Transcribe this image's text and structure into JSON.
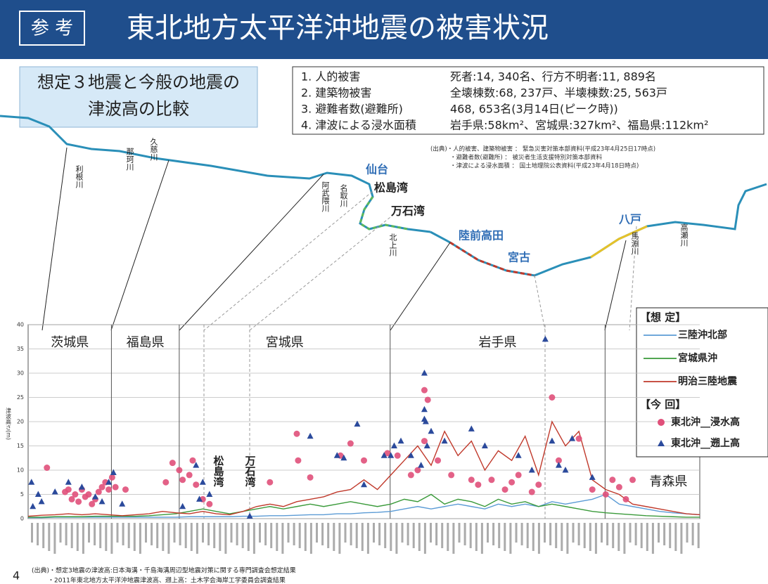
{
  "header": {
    "tag": "参 考",
    "title": "東北地方太平洋沖地震の被害状況"
  },
  "comparison_box": {
    "lines": [
      "想定３地震と今般の地震の",
      "津波高の比較"
    ]
  },
  "damage": {
    "rows": [
      {
        "label": "1. 人的被害",
        "value": "死者:14, 340名、行方不明者:11, 889名"
      },
      {
        "label": "2. 建築物被害",
        "value": "全壊棟数:68, 237戸、半壊棟数:25, 563戸"
      },
      {
        "label": "3. 避難者数(避難所)",
        "value": "468, 653名(3月14日(ピーク時))"
      },
      {
        "label": "4. 津波による浸水面積",
        "value": "岩手県:58km²、宮城県:327km²、福島県:112km²"
      }
    ],
    "source": [
      "(出典)・人的被害、建築物被害 ： 緊急災害対策本部資料(平成23年4月25日17時点)",
      "・避難者数(避難所) ： 被災者生活支援特別対策本部資料",
      "・津波による浸水面積 ： 国土地理院公表資料(平成23年4月18日時点)"
    ]
  },
  "map_labels": [
    "利根川",
    "那珂川",
    "久慈川",
    "阿武隈川",
    "名取川",
    "北上川",
    "仙台",
    "松島湾",
    "万石湾",
    "陸前高田",
    "宮古",
    "八戸",
    "馬淵川",
    "高瀬川"
  ],
  "chart_data": {
    "type": "line",
    "y_label": "津波高さ(m)",
    "ylim": [
      0,
      40
    ],
    "yticks": [
      0,
      5,
      10,
      15,
      20,
      25,
      30,
      35,
      40
    ],
    "xlim": [
      0,
      100
    ],
    "grid": true,
    "regions": [
      {
        "name": "茨城県",
        "end": 12.4
      },
      {
        "name": "福島県",
        "end": 22.5
      },
      {
        "name": "宮城県",
        "end": 53.9
      },
      {
        "name": "岩手県",
        "end": 85.9
      },
      {
        "name": "青森県",
        "end": 100
      }
    ],
    "annotations": [
      "松島湾",
      "万石湾"
    ],
    "legend_titles": [
      "【想 定】",
      "【今 回】"
    ],
    "x": [
      0,
      2,
      4,
      6,
      8,
      10,
      12,
      14,
      16,
      18,
      20,
      22,
      24,
      26,
      28,
      30,
      32,
      34,
      36,
      38,
      40,
      42,
      44,
      46,
      48,
      50,
      52,
      54,
      56,
      58,
      60,
      62,
      64,
      66,
      68,
      70,
      72,
      74,
      76,
      78,
      80,
      82,
      84,
      86,
      88,
      90,
      92,
      94,
      96,
      98,
      100
    ],
    "series": [
      {
        "name": "三陸沖北部",
        "kind": "line",
        "color": "#5b9bd5",
        "values": [
          0.2,
          0.2,
          0.3,
          0.3,
          0.3,
          0.3,
          0.3,
          0.3,
          0.3,
          0.3,
          0.3,
          0.3,
          0.4,
          0.4,
          0.4,
          0.4,
          0.5,
          0.5,
          0.6,
          0.6,
          0.7,
          0.8,
          0.8,
          1,
          1,
          1.2,
          1.3,
          1.5,
          2,
          2.5,
          2,
          2.5,
          3,
          2.5,
          2,
          3,
          2.5,
          3,
          2.5,
          3.5,
          3,
          3.5,
          4,
          5,
          3,
          2.5,
          2,
          1.5,
          1.2,
          1,
          0.8
        ]
      },
      {
        "name": "宮城県沖",
        "kind": "line",
        "color": "#3a9a3a",
        "values": [
          0.3,
          0.3,
          0.4,
          0.4,
          0.4,
          0.5,
          0.5,
          0.5,
          0.5,
          0.6,
          0.8,
          1,
          1.5,
          2,
          1.5,
          1,
          1.5,
          2,
          2.5,
          2,
          2.5,
          3,
          2.5,
          3,
          3.5,
          3,
          2.5,
          3,
          4,
          3.5,
          5,
          3,
          4,
          3.5,
          2.5,
          4,
          3,
          3.5,
          2.5,
          3,
          2.5,
          2,
          1.5,
          1.2,
          1,
          0.8,
          0.6,
          0.5,
          0.4,
          0.3,
          0.3
        ]
      },
      {
        "name": "明治三陸地震",
        "kind": "line",
        "color": "#c0392b",
        "values": [
          0.5,
          0.7,
          0.8,
          1,
          0.8,
          1,
          0.8,
          0.6,
          0.8,
          1,
          1.5,
          1.2,
          1,
          1.5,
          1,
          0.8,
          1.5,
          2.5,
          3,
          2.5,
          3.5,
          4,
          4.5,
          5.5,
          6,
          8,
          6,
          9,
          12,
          15,
          11,
          18,
          13,
          16,
          10,
          14,
          12,
          17,
          9,
          20,
          15,
          18,
          8,
          6,
          5,
          3,
          2.5,
          2,
          1.5,
          1,
          0.8
        ]
      },
      {
        "name": "東北沖__浸水高",
        "kind": "scatter",
        "marker": "circle",
        "color": "#e0507a",
        "x": [
          2.8,
          5.5,
          6,
          6.5,
          7,
          7.5,
          8,
          8.5,
          9,
          9.5,
          10,
          10.5,
          11,
          11.5,
          12,
          12.5,
          13,
          14.5,
          20.5,
          21.5,
          22.5,
          23,
          24,
          24.5,
          25,
          26,
          27,
          36,
          40,
          40.2,
          42,
          46.5,
          48,
          50,
          53.5,
          55,
          57,
          58,
          59,
          59,
          59.5,
          61,
          63,
          66,
          67,
          69,
          71,
          72,
          73,
          75,
          76,
          78,
          79,
          82,
          84,
          86,
          87,
          88,
          89,
          90
        ],
        "values": [
          10.5,
          5.5,
          6,
          4,
          5,
          3.5,
          6,
          4.5,
          5,
          3,
          4,
          5.5,
          6.5,
          7.5,
          6,
          8.5,
          6.5,
          6,
          7.5,
          11.5,
          10,
          8,
          9,
          12,
          7,
          4,
          3,
          7.5,
          17.5,
          12,
          8.5,
          13,
          15.5,
          12,
          13.5,
          13,
          9,
          10,
          26.5,
          16,
          24.5,
          12,
          9,
          8,
          7,
          8,
          6,
          7.5,
          9,
          5.5,
          7,
          25,
          12,
          16.5,
          6,
          5,
          8,
          6.5,
          4,
          8
        ]
      },
      {
        "name": "東北沖__遡上高",
        "kind": "scatter",
        "marker": "triangle",
        "color": "#2b4a9c",
        "x": [
          0.5,
          0.7,
          1.5,
          2,
          4,
          6,
          8,
          10,
          11,
          12,
          12.7,
          14,
          23,
          25,
          25.5,
          26,
          27,
          33,
          42,
          46,
          47,
          49,
          50,
          53,
          54,
          54.5,
          55.5,
          57,
          58.5,
          59,
          59,
          59,
          59.2,
          59.4,
          60,
          62,
          66,
          68,
          73,
          75,
          77,
          78,
          79,
          80,
          81,
          84
        ],
        "values": [
          7.5,
          2.5,
          5,
          3.5,
          5.5,
          7.5,
          6.5,
          4.5,
          3.5,
          7.5,
          9.5,
          3,
          2.5,
          11,
          4,
          7.5,
          5,
          0.5,
          17,
          13,
          12.5,
          19.5,
          7,
          13,
          13,
          15,
          16,
          13,
          11,
          30,
          22.5,
          20.5,
          20,
          15,
          18,
          16,
          18.5,
          15,
          13,
          10,
          37,
          16,
          11,
          10,
          16.5,
          8.5
        ]
      }
    ]
  },
  "footer": {
    "page": "4",
    "source": [
      "(出典)・想定3地震の津波高:日本海溝・千島海溝周辺型地震対策に関する専門調査会想定結果",
      "・2011年東北地方太平洋沖地震津波高、遡上高：土木学会海岸工学委員会調査結果"
    ]
  }
}
